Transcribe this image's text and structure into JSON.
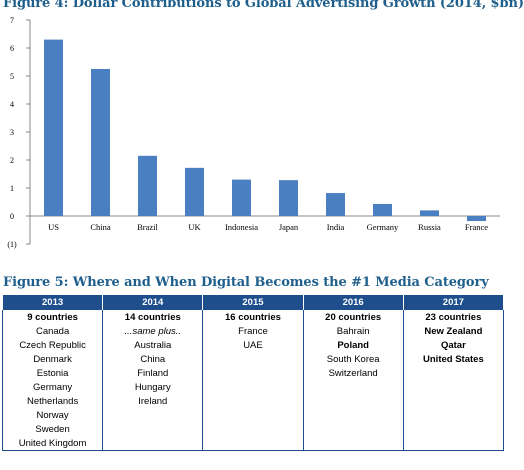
{
  "figure4": {
    "title": "Figure 4: Dollar Contributions to Global Advertising Growth (2014, $bn)"
  },
  "chart_data": {
    "type": "bar",
    "title": "Figure 4: Dollar Contributions to Global Advertising Growth (2014, $bn)",
    "categories": [
      "US",
      "China",
      "Brazil",
      "UK",
      "Indonesia",
      "Japan",
      "India",
      "Germany",
      "Russia",
      "France"
    ],
    "values": [
      6.3,
      5.25,
      2.15,
      1.72,
      1.3,
      1.28,
      0.82,
      0.43,
      0.2,
      -0.18
    ],
    "y_ticks": [
      "7",
      "6",
      "5",
      "4",
      "3",
      "2",
      "1",
      "0",
      "(1)"
    ],
    "ylim": [
      -1,
      7
    ],
    "grid": false,
    "bar_color": "#4a7fc1"
  },
  "figure5": {
    "title": "Figure 5: Where and When Digital Becomes the #1 Media Category",
    "header_color": "#1f4e8c",
    "columns": [
      {
        "year": "2013",
        "count": "9 countries",
        "items": [
          "Canada",
          "Czech Republic",
          "Denmark",
          "Estonia",
          "Germany",
          "Netherlands",
          "Norway",
          "Sweden",
          "United Kingdom"
        ]
      },
      {
        "year": "2014",
        "count": "14 countries",
        "items": [
          "...same plus..",
          "Australia",
          "China",
          "Finland",
          "Hungary",
          "Ireland"
        ]
      },
      {
        "year": "2015",
        "count": "16 countries",
        "items": [
          "France",
          "UAE"
        ]
      },
      {
        "year": "2016",
        "count": "20 countries",
        "items": [
          "Bahrain",
          "Poland",
          "South Korea",
          "Switzerland"
        ]
      },
      {
        "year": "2017",
        "count": "23 countries",
        "items": [
          "New Zealand",
          "Qatar",
          "United States"
        ]
      }
    ]
  }
}
